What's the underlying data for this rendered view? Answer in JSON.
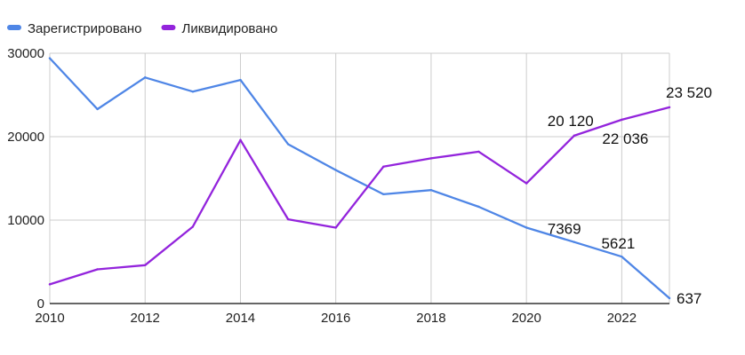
{
  "chart_data": {
    "type": "line",
    "title": "",
    "xlabel": "",
    "ylabel": "",
    "x": [
      2010,
      2011,
      2012,
      2013,
      2014,
      2015,
      2016,
      2017,
      2018,
      2019,
      2020,
      2021,
      2022,
      2023
    ],
    "xlim": [
      2010,
      2023
    ],
    "ylim": [
      0,
      30000
    ],
    "x_ticks": [
      "2010",
      "2012",
      "2014",
      "2016",
      "2018",
      "2020",
      "2022"
    ],
    "y_ticks": [
      "0",
      "10000",
      "20000",
      "30000"
    ],
    "grid": true,
    "legend_position": "top-left",
    "series": [
      {
        "name": "Зарегистрировано",
        "color": "#4f86e6",
        "values": [
          29400,
          23300,
          27100,
          25400,
          26800,
          19100,
          16000,
          13100,
          13600,
          11600,
          9100,
          7369,
          5621,
          637
        ]
      },
      {
        "name": "Ликвидировано",
        "color": "#9324dc",
        "values": [
          2300,
          4100,
          4600,
          9200,
          19600,
          10100,
          9100,
          16400,
          17400,
          18200,
          14400,
          20120,
          22036,
          23520
        ]
      }
    ],
    "annotations": [
      {
        "series": 0,
        "x": 2021,
        "text": "7369"
      },
      {
        "series": 0,
        "x": 2022,
        "text": "5621"
      },
      {
        "series": 0,
        "x": 2023,
        "text": "637"
      },
      {
        "series": 1,
        "x": 2021,
        "text": "20 120"
      },
      {
        "series": 1,
        "x": 2022,
        "text": "22 036"
      },
      {
        "series": 1,
        "x": 2023,
        "text": "23 520"
      }
    ]
  }
}
